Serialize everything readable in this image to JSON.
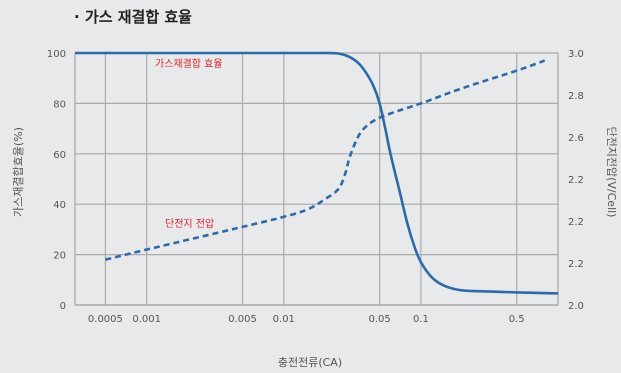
{
  "title": "· 가스 재결합 효율",
  "chart_data": {
    "type": "line",
    "xlabel": "충전전류(CA)",
    "ylabel_left": "가스재결합효율(%)",
    "ylabel_right": "단전지전압(V/Cell)",
    "x_ticks": [
      {
        "label": "0.0005",
        "value": 0.0005
      },
      {
        "label": "0.001",
        "value": 0.001
      },
      {
        "label": "0.005",
        "value": 0.005
      },
      {
        "label": "0.01",
        "value": 0.01
      },
      {
        "label": "0.05",
        "value": 0.05
      },
      {
        "label": "0.1",
        "value": 0.1
      },
      {
        "label": "0.5",
        "value": 0.5
      }
    ],
    "xlim": [
      0.0003,
      1.0
    ],
    "x_scale": "log",
    "y_left_ticks": [
      "0",
      "20",
      "40",
      "60",
      "80",
      "100"
    ],
    "y_left_lim": [
      0,
      100
    ],
    "y_right_ticks": [
      "2.0",
      "2.2",
      "2.2",
      "2.2",
      "2.6",
      "2.8",
      "3.0"
    ],
    "y_right_lim": [
      2.0,
      3.0
    ],
    "series": [
      {
        "name": "가스재결합 효율",
        "axis": "left",
        "style": "solid",
        "color": "#2e6aa8",
        "label_color": "#d9262c",
        "points": [
          [
            0.0003,
            100
          ],
          [
            0.001,
            100
          ],
          [
            0.005,
            100
          ],
          [
            0.01,
            100
          ],
          [
            0.02,
            100
          ],
          [
            0.025,
            99.8
          ],
          [
            0.03,
            98.5
          ],
          [
            0.035,
            96
          ],
          [
            0.04,
            92
          ],
          [
            0.045,
            87
          ],
          [
            0.05,
            80
          ],
          [
            0.055,
            70
          ],
          [
            0.06,
            60
          ],
          [
            0.07,
            45
          ],
          [
            0.08,
            32
          ],
          [
            0.09,
            23
          ],
          [
            0.1,
            17
          ],
          [
            0.12,
            11
          ],
          [
            0.15,
            7.5
          ],
          [
            0.2,
            5.8
          ],
          [
            0.3,
            5.4
          ],
          [
            0.5,
            5.0
          ],
          [
            1.0,
            4.6
          ]
        ]
      },
      {
        "name": "단전지 전압",
        "axis": "right",
        "style": "dashed",
        "color": "#2e6aa8",
        "label_color": "#d9262c",
        "points": [
          [
            0.0005,
            2.18
          ],
          [
            0.001,
            2.22
          ],
          [
            0.005,
            2.31
          ],
          [
            0.01,
            2.35
          ],
          [
            0.015,
            2.38
          ],
          [
            0.02,
            2.42
          ],
          [
            0.025,
            2.46
          ],
          [
            0.028,
            2.52
          ],
          [
            0.03,
            2.58
          ],
          [
            0.033,
            2.64
          ],
          [
            0.037,
            2.69
          ],
          [
            0.045,
            2.73
          ],
          [
            0.06,
            2.76
          ],
          [
            0.1,
            2.8
          ],
          [
            0.2,
            2.86
          ],
          [
            0.5,
            2.93
          ],
          [
            0.8,
            2.97
          ]
        ]
      }
    ],
    "grid": true
  }
}
